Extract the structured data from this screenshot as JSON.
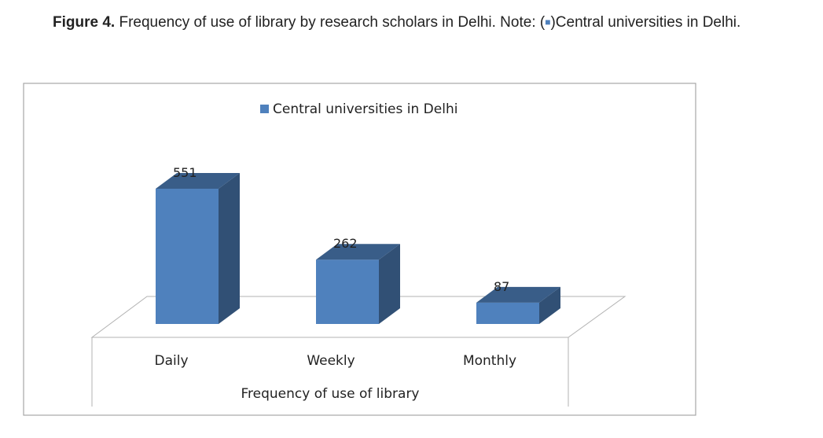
{
  "caption": {
    "label": "Figure 4.",
    "text_before": " Frequency of use of library by research scholars in Delhi. Note: (",
    "swatch": "■",
    "text_after": ")Central universities in Delhi."
  },
  "chart_data": {
    "type": "bar",
    "style": "3d-column",
    "categories": [
      "Daily",
      "Weekly",
      "Monthly"
    ],
    "series": [
      {
        "name": "Central universities in Delhi",
        "values": [
          551,
          262,
          87
        ],
        "color": "#4f81bd"
      }
    ],
    "data_labels": [
      "551",
      "262",
      "87"
    ],
    "xlabel": "Frequency of use of library",
    "ylabel": "",
    "ylim": [
      0,
      600
    ],
    "legend": "top-center",
    "grid": false
  }
}
